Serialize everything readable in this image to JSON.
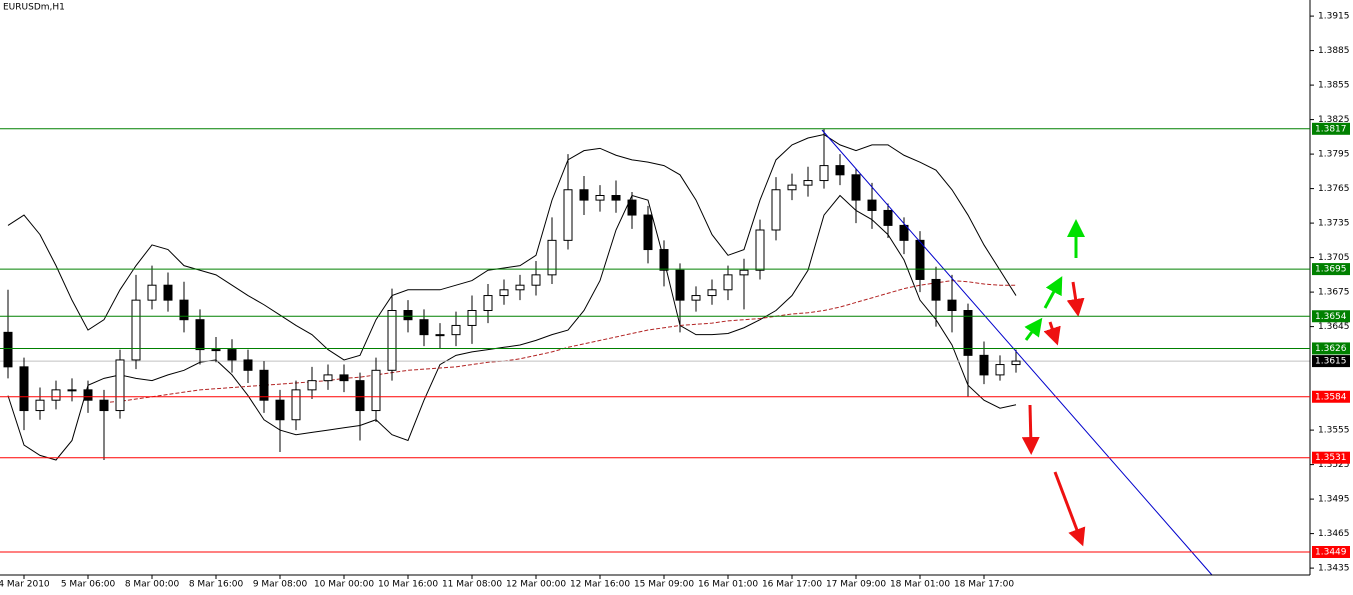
{
  "chart_data": {
    "type": "candlestick",
    "title": "EURUSDm,H1",
    "categories": [
      null,
      "4 Mar 2010",
      null,
      null,
      null,
      "5 Mar 06:00",
      null,
      null,
      null,
      "8 Mar 00:00",
      null,
      null,
      null,
      "8 Mar 16:00",
      null,
      null,
      null,
      "9 Mar 08:00",
      null,
      null,
      null,
      "10 Mar 00:00",
      null,
      null,
      null,
      "10 Mar 16:00",
      null,
      null,
      null,
      "11 Mar 08:00",
      null,
      null,
      null,
      "12 Mar 00:00",
      null,
      null,
      null,
      "12 Mar 16:00",
      null,
      null,
      null,
      "15 Mar 09:00",
      null,
      null,
      null,
      "16 Mar 01:00",
      null,
      null,
      null,
      "16 Mar 17:00",
      null,
      null,
      null,
      "17 Mar 09:00",
      null,
      null,
      null,
      "18 Mar 01:00",
      null,
      null,
      null,
      "18 Mar 17:00",
      null,
      null
    ],
    "open": [
      1.364,
      1.361,
      1.3572,
      1.3581,
      1.359,
      1.359,
      1.3581,
      1.3572,
      1.3616,
      1.3668,
      1.3681,
      1.3668,
      1.3651,
      1.3625,
      1.3625,
      1.3616,
      1.3607,
      1.3581,
      1.3564,
      1.359,
      1.3598,
      1.3603,
      1.3598,
      1.3572,
      1.3607,
      1.3659,
      1.3651,
      1.3638,
      1.3638,
      1.3646,
      1.3659,
      1.3672,
      1.3677,
      1.3681,
      1.369,
      1.372,
      1.3764,
      1.3755,
      1.3759,
      1.3755,
      1.3742,
      1.3712,
      1.3694,
      1.3668,
      1.3672,
      1.3677,
      1.369,
      1.3694,
      1.3729,
      1.3764,
      1.3768,
      1.3772,
      1.3785,
      1.3777,
      1.3755,
      1.3746,
      1.3733,
      1.372,
      1.3686,
      1.3668,
      1.3659,
      1.362,
      1.3603,
      1.3612
    ],
    "high": [
      1.3677,
      1.3618,
      1.3592,
      1.3598,
      1.36,
      1.3598,
      1.359,
      1.3625,
      1.369,
      1.3698,
      1.3692,
      1.3684,
      1.366,
      1.3636,
      1.3634,
      1.3625,
      1.3615,
      1.359,
      1.3598,
      1.361,
      1.3612,
      1.3612,
      1.3605,
      1.3618,
      1.3678,
      1.3668,
      1.366,
      1.3648,
      1.3658,
      1.3672,
      1.3682,
      1.3686,
      1.369,
      1.3702,
      1.374,
      1.3795,
      1.3776,
      1.3768,
      1.3772,
      1.3762,
      1.375,
      1.372,
      1.37,
      1.368,
      1.3686,
      1.3698,
      1.3704,
      1.3738,
      1.3775,
      1.3778,
      1.3784,
      1.3817,
      1.3795,
      1.3782,
      1.377,
      1.3752,
      1.374,
      1.3728,
      1.3697,
      1.369,
      1.3665,
      1.3632,
      1.362,
      1.3625
    ],
    "low": [
      1.36,
      1.3555,
      1.3564,
      1.3573,
      1.358,
      1.357,
      1.3529,
      1.3565,
      1.3608,
      1.366,
      1.3658,
      1.364,
      1.3612,
      1.3614,
      1.3605,
      1.3596,
      1.357,
      1.3536,
      1.3555,
      1.3582,
      1.359,
      1.3588,
      1.3546,
      1.3562,
      1.3598,
      1.364,
      1.3628,
      1.3626,
      1.3628,
      1.363,
      1.3648,
      1.3664,
      1.3668,
      1.3672,
      1.3682,
      1.3712,
      1.3742,
      1.3745,
      1.3744,
      1.373,
      1.37,
      1.368,
      1.364,
      1.3658,
      1.3664,
      1.3668,
      1.366,
      1.3686,
      1.372,
      1.3755,
      1.3758,
      1.3765,
      1.3768,
      1.3735,
      1.373,
      1.3722,
      1.3708,
      1.3675,
      1.3645,
      1.364,
      1.3584,
      1.3595,
      1.3598,
      1.3605
    ],
    "close": [
      1.361,
      1.3572,
      1.3581,
      1.359,
      1.359,
      1.3581,
      1.3572,
      1.3616,
      1.3668,
      1.3681,
      1.3668,
      1.3651,
      1.3625,
      1.3625,
      1.3616,
      1.3607,
      1.3581,
      1.3564,
      1.359,
      1.3598,
      1.3603,
      1.3598,
      1.3572,
      1.3607,
      1.3659,
      1.3651,
      1.3638,
      1.3638,
      1.3646,
      1.3659,
      1.3672,
      1.3677,
      1.3681,
      1.369,
      1.372,
      1.3764,
      1.3755,
      1.3759,
      1.3755,
      1.3742,
      1.3712,
      1.3694,
      1.3668,
      1.3672,
      1.3677,
      1.369,
      1.3694,
      1.3729,
      1.3764,
      1.3768,
      1.3772,
      1.3785,
      1.3777,
      1.3755,
      1.3746,
      1.3733,
      1.372,
      1.3686,
      1.3668,
      1.3659,
      1.362,
      1.3603,
      1.3612,
      1.3615
    ],
    "bands": {
      "color": "#000000",
      "upper": [
        1.3733,
        1.3742,
        1.3725,
        1.3698,
        1.3668,
        1.3642,
        1.3651,
        1.3677,
        1.3698,
        1.3716,
        1.3712,
        1.3698,
        1.3694,
        1.369,
        1.3681,
        1.3672,
        1.3664,
        1.3655,
        1.3646,
        1.3638,
        1.3625,
        1.3616,
        1.362,
        1.3651,
        1.3672,
        1.3677,
        1.3677,
        1.3677,
        1.3681,
        1.3685,
        1.3694,
        1.3696,
        1.3698,
        1.3707,
        1.3755,
        1.379,
        1.3798,
        1.38,
        1.3794,
        1.379,
        1.3788,
        1.3785,
        1.3777,
        1.3755,
        1.3725,
        1.3707,
        1.3712,
        1.3755,
        1.379,
        1.3803,
        1.3809,
        1.3812,
        1.3803,
        1.3798,
        1.3803,
        1.3803,
        1.3794,
        1.3788,
        1.3781,
        1.3764,
        1.3742,
        1.3716,
        1.3694,
        1.3672
      ],
      "lower": [
        1.3585,
        1.3542,
        1.3533,
        1.3529,
        1.3546,
        1.3594,
        1.36,
        1.3603,
        1.36,
        1.3598,
        1.3603,
        1.3607,
        1.3614,
        1.3616,
        1.3603,
        1.3585,
        1.3564,
        1.3555,
        1.3551,
        1.3553,
        1.3555,
        1.3557,
        1.3559,
        1.3564,
        1.3551,
        1.3546,
        1.3581,
        1.3612,
        1.362,
        1.3623,
        1.3625,
        1.3627,
        1.3629,
        1.3633,
        1.3638,
        1.3642,
        1.3659,
        1.3685,
        1.3729,
        1.3759,
        1.3755,
        1.3703,
        1.3646,
        1.3638,
        1.3638,
        1.3639,
        1.3644,
        1.3651,
        1.3659,
        1.3672,
        1.3694,
        1.3742,
        1.3759,
        1.3746,
        1.3738,
        1.3725,
        1.3703,
        1.3668,
        1.3651,
        1.3629,
        1.3594,
        1.3581,
        1.3574,
        1.3577
      ]
    },
    "ma": {
      "color": "#b22222",
      "values": [
        null,
        null,
        null,
        null,
        null,
        null,
        1.3579,
        1.358,
        1.3582,
        1.3584,
        1.3586,
        1.3588,
        1.359,
        1.3591,
        1.3592,
        1.3593,
        1.3594,
        1.3595,
        1.3596,
        1.3597,
        1.3598,
        1.36,
        1.3601,
        1.3603,
        1.3605,
        1.3607,
        1.3608,
        1.3609,
        1.361,
        1.3612,
        1.3614,
        1.3615,
        1.3617,
        1.362,
        1.3623,
        1.3627,
        1.363,
        1.3633,
        1.3636,
        1.3639,
        1.3642,
        1.3644,
        1.3646,
        1.3647,
        1.3648,
        1.365,
        1.3651,
        1.3652,
        1.3654,
        1.3656,
        1.3657,
        1.3659,
        1.3662,
        1.3666,
        1.367,
        1.3674,
        1.3678,
        1.3681,
        1.3683,
        1.3685,
        1.3684,
        1.3682,
        1.3681,
        1.3681
      ]
    },
    "levels": [
      {
        "value": 1.3817,
        "color": "#008000"
      },
      {
        "value": 1.3695,
        "color": "#008000"
      },
      {
        "value": 1.3654,
        "color": "#008000"
      },
      {
        "value": 1.3626,
        "color": "#008000"
      },
      {
        "value": 1.3584,
        "color": "#ff0000"
      },
      {
        "value": 1.3531,
        "color": "#ff0000"
      },
      {
        "value": 1.3449,
        "color": "#ff0000"
      }
    ],
    "price": {
      "value": 1.3615,
      "color": "#000000"
    },
    "ylim": [
      1.3429,
      1.3929
    ],
    "yticks": [
      1.3915,
      1.3885,
      1.3855,
      1.3825,
      1.3795,
      1.3765,
      1.3735,
      1.3705,
      1.3675,
      1.3645,
      1.3555,
      1.3525,
      1.3495,
      1.3465,
      1.3435
    ]
  }
}
